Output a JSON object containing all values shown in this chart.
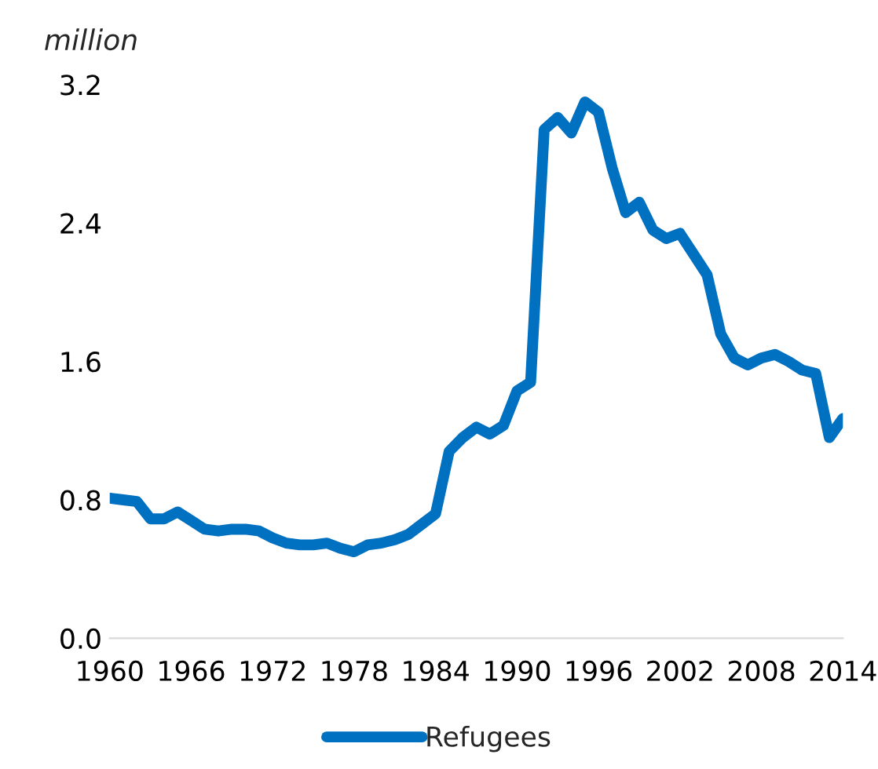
{
  "chart_data": {
    "type": "line",
    "ylabel": "million",
    "x": [
      1960,
      1961,
      1962,
      1963,
      1964,
      1965,
      1966,
      1967,
      1968,
      1969,
      1970,
      1971,
      1972,
      1973,
      1974,
      1975,
      1976,
      1977,
      1978,
      1979,
      1980,
      1981,
      1982,
      1983,
      1984,
      1985,
      1986,
      1987,
      1988,
      1989,
      1990,
      1991,
      1992,
      1993,
      1994,
      1995,
      1996,
      1997,
      1998,
      1999,
      2000,
      2001,
      2002,
      2003,
      2004,
      2005,
      2006,
      2007,
      2008,
      2009,
      2010,
      2011,
      2012,
      2013,
      2014
    ],
    "series": [
      {
        "name": "Refugees",
        "color": "#0070c0",
        "values": [
          0.81,
          0.8,
          0.79,
          0.69,
          0.69,
          0.73,
          0.68,
          0.63,
          0.62,
          0.63,
          0.63,
          0.62,
          0.58,
          0.55,
          0.54,
          0.54,
          0.55,
          0.52,
          0.5,
          0.54,
          0.55,
          0.57,
          0.6,
          0.66,
          0.72,
          1.08,
          1.16,
          1.22,
          1.18,
          1.23,
          1.43,
          1.48,
          2.94,
          3.01,
          2.92,
          3.1,
          3.04,
          2.72,
          2.46,
          2.52,
          2.36,
          2.31,
          2.34,
          2.22,
          2.1,
          1.76,
          1.62,
          1.58,
          1.62,
          1.64,
          1.6,
          1.55,
          1.53,
          1.16,
          1.27
        ]
      }
    ],
    "xlim": [
      1960,
      2014
    ],
    "xticks": [
      1960,
      1966,
      1972,
      1978,
      1984,
      1990,
      1996,
      2002,
      2008,
      2014
    ],
    "ylim": [
      0,
      3.2
    ],
    "yticks": [
      {
        "value": 0,
        "label": "0.0"
      },
      {
        "value": 0.8,
        "label": "0.8"
      },
      {
        "value": 1.6,
        "label": "1.6"
      },
      {
        "value": 2.4,
        "label": "2.4"
      },
      {
        "value": 3.2,
        "label": "3.2"
      }
    ],
    "grid": false,
    "legend": "bottom",
    "marker": "none",
    "line_style": "solid"
  }
}
